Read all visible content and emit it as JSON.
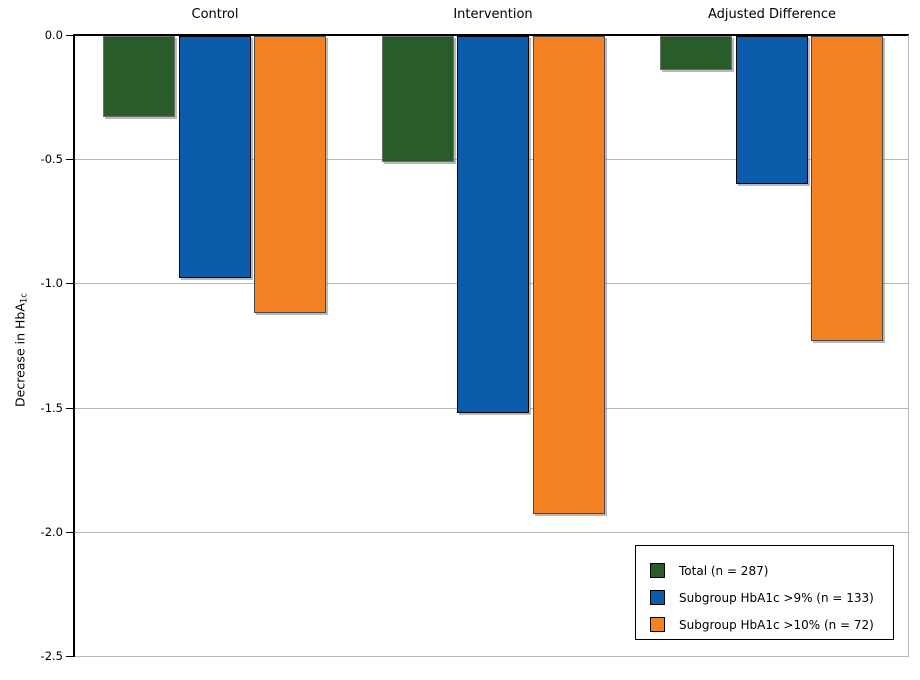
{
  "chart_data": {
    "type": "bar",
    "categories": [
      "Control",
      "Intervention",
      "Adjusted Difference"
    ],
    "series": [
      {
        "name": "Total (n = 287)",
        "color": "#2a5c2a",
        "border_color": "#6e6e6e",
        "values": [
          -0.33,
          -0.51,
          -0.14
        ]
      },
      {
        "name": "Subgroup HbA1c >9% (n = 133)",
        "color": "#0c5cac",
        "border_color": "#000000",
        "values": [
          -0.98,
          -1.52,
          -0.6
        ]
      },
      {
        "name": "Subgroup HbA1c >10% (n = 72)",
        "color": "#f58222",
        "border_color": "#4a4a4a",
        "values": [
          -1.12,
          -1.93,
          -1.23
        ]
      }
    ],
    "ylabel": "Decrease in HbA",
    "ylabel_subscript": "1c",
    "xlabel": "",
    "title": "",
    "ylim": [
      0,
      -2.5
    ],
    "yticks": [
      "0.0",
      "-0.5",
      "-1.0",
      "-1.5",
      "-2.0",
      "-2.5"
    ],
    "grid": "horizontal",
    "legend_position": "bottom-right",
    "axis_color": "#000000",
    "gridline_color": "#b8b8b8",
    "background_color": "#ffffff"
  }
}
